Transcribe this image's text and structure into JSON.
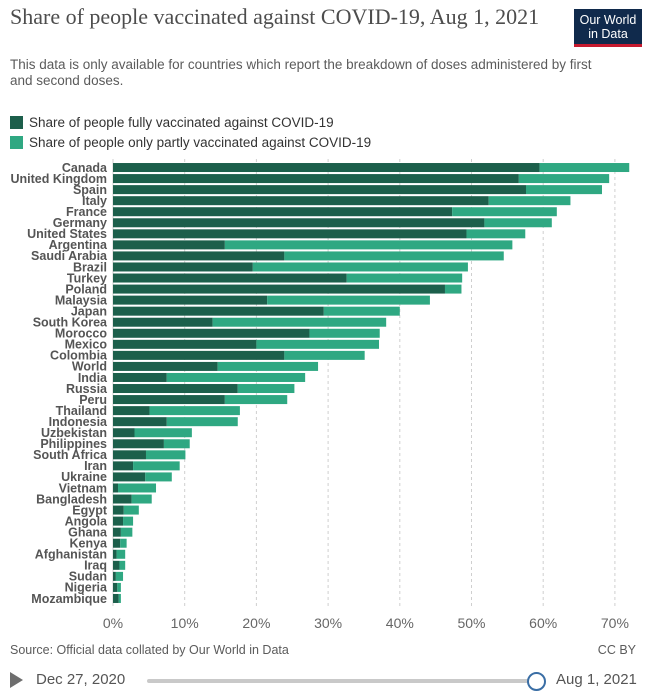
{
  "header": {
    "title": "Share of people vaccinated against COVID-19, Aug 1, 2021",
    "subtitle": "This data is only available for countries which report the breakdown of doses administered by first and second doses.",
    "logo_line1": "Our World",
    "logo_line2": "in Data"
  },
  "legend": {
    "items": [
      {
        "label": "Share of people fully vaccinated against COVID-19",
        "color": "#1c5f4b"
      },
      {
        "label": "Share of people only partly vaccinated against COVID-19",
        "color": "#2fa882"
      }
    ]
  },
  "chart_data": {
    "type": "bar",
    "orientation": "horizontal",
    "stacked": true,
    "categories": [
      "Canada",
      "United Kingdom",
      "Spain",
      "Italy",
      "France",
      "Germany",
      "United States",
      "Argentina",
      "Saudi Arabia",
      "Brazil",
      "Turkey",
      "Poland",
      "Malaysia",
      "Japan",
      "South Korea",
      "Morocco",
      "Mexico",
      "Colombia",
      "World",
      "India",
      "Russia",
      "Peru",
      "Thailand",
      "Indonesia",
      "Uzbekistan",
      "Philippines",
      "South Africa",
      "Iran",
      "Ukraine",
      "Vietnam",
      "Bangladesh",
      "Egypt",
      "Angola",
      "Ghana",
      "Kenya",
      "Afghanistan",
      "Iraq",
      "Sudan",
      "Nigeria",
      "Mozambique"
    ],
    "series": [
      {
        "name": "Share of people fully vaccinated against COVID-19",
        "color": "#1c5f4b",
        "values": [
          59.5,
          56.6,
          57.6,
          52.4,
          47.3,
          51.8,
          49.3,
          15.6,
          23.9,
          19.5,
          32.6,
          46.3,
          21.5,
          29.4,
          13.9,
          27.4,
          20.0,
          23.9,
          14.6,
          7.5,
          17.4,
          15.6,
          5.1,
          7.5,
          3.0,
          7.1,
          4.6,
          2.8,
          4.5,
          0.7,
          2.6,
          1.5,
          1.4,
          1.1,
          1.0,
          0.5,
          0.9,
          0.4,
          0.6,
          0.8
        ]
      },
      {
        "name": "Share of people only partly vaccinated against COVID-19",
        "color": "#2fa882",
        "values": [
          12.5,
          12.6,
          10.6,
          11.4,
          14.6,
          9.4,
          8.2,
          40.1,
          30.6,
          30.0,
          16.1,
          2.3,
          22.7,
          10.6,
          24.2,
          9.8,
          17.1,
          11.2,
          14.0,
          19.3,
          7.9,
          8.7,
          12.6,
          9.9,
          8.0,
          3.6,
          5.5,
          6.5,
          3.7,
          5.3,
          2.8,
          2.1,
          1.4,
          1.6,
          0.9,
          1.2,
          0.8,
          1.0,
          0.5,
          0.3
        ]
      }
    ],
    "xlim": [
      0,
      72
    ],
    "xticks": [
      "0%",
      "10%",
      "20%",
      "30%",
      "40%",
      "50%",
      "60%",
      "70%"
    ],
    "xtick_values": [
      0,
      10,
      20,
      30,
      40,
      50,
      60,
      70
    ],
    "grid": "vertical-dashed"
  },
  "footer": {
    "source": "Source: Official data collated by Our World in Data",
    "license": "CC BY"
  },
  "timeline": {
    "start_date": "Dec 27, 2020",
    "end_date": "Aug 1, 2021"
  }
}
